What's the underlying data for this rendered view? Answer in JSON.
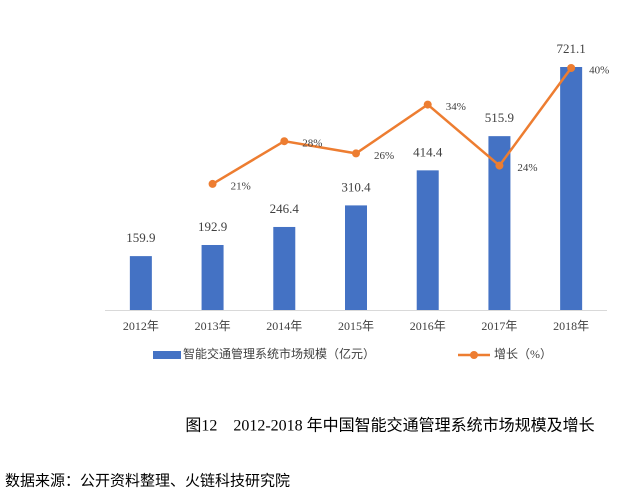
{
  "chart_data": {
    "type": "bar",
    "categories": [
      "2012年",
      "2013年",
      "2014年",
      "2015年",
      "2016年",
      "2017年",
      "2018年"
    ],
    "series": [
      {
        "name": "智能交通管理系统市场规模（亿元）",
        "type": "bar",
        "color": "#4472c4",
        "values": [
          159.9,
          192.9,
          246.4,
          310.4,
          414.4,
          515.9,
          721.1
        ]
      },
      {
        "name": "增长（%）",
        "type": "line",
        "color": "#ed7d31",
        "values": [
          null,
          21,
          28,
          26,
          34,
          24,
          40
        ],
        "value_labels": [
          null,
          "21%",
          "28%",
          "26%",
          "34%",
          "24%",
          "40%"
        ]
      }
    ],
    "caption": "图12　2012-2018 年中国智能交通管理系统市场规模及增长",
    "source": "数据来源：公开资料整理、火链科技研究院"
  }
}
